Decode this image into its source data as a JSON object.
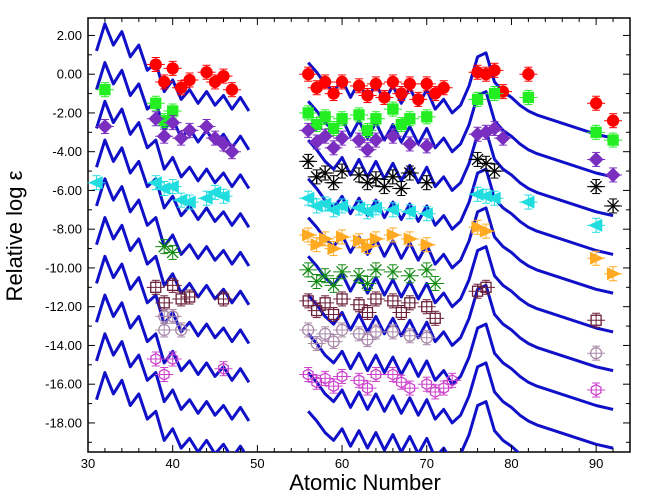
{
  "chart_data": {
    "type": "scatter",
    "title": "",
    "xlabel": "Atomic Number",
    "ylabel": "Relative log ε",
    "xlim": [
      30,
      94
    ],
    "ylim": [
      -19.5,
      2.9
    ],
    "x_ticks": [
      30,
      40,
      50,
      60,
      70,
      80,
      90
    ],
    "x_tick_labels": [
      "30",
      "40",
      "50",
      "60",
      "70",
      "80",
      "90"
    ],
    "y_ticks": [
      2,
      0,
      -2,
      -4,
      -6,
      -8,
      -10,
      -12,
      -14,
      -16,
      -18
    ],
    "y_tick_labels": [
      "2.00",
      "0.00",
      "-2.00",
      "-4.00",
      "-6.00",
      "-8.00",
      "-10.00",
      "-12.00",
      "-14.00",
      "-16.00",
      "-18.00"
    ],
    "grid": false,
    "model_line_color": "#1010c8",
    "model_pattern": {
      "segment1_x": [
        31,
        32,
        33,
        34,
        35,
        36,
        37,
        38,
        39,
        40,
        41,
        42,
        43,
        44,
        45,
        46,
        47,
        48,
        49
      ],
      "segment1_y": [
        1.2,
        2.6,
        1.5,
        2.2,
        0.9,
        1.5,
        0.2,
        0.6,
        -0.9,
        -0.3,
        -1.3,
        -0.8,
        -1.5,
        -0.9,
        -1.6,
        -1.1,
        -1.8,
        -1.2,
        -1.9
      ],
      "segment2_x": [
        56,
        57,
        58,
        59,
        60,
        61,
        62,
        63,
        64,
        65,
        66,
        67,
        68,
        69,
        70,
        71,
        72,
        73,
        74,
        75,
        76,
        77,
        78,
        79,
        80,
        81,
        82,
        83,
        90,
        92
      ],
      "segment2_y": [
        0.6,
        0.1,
        -0.5,
        -0.9,
        -0.3,
        -1.2,
        -0.4,
        -1.3,
        -0.5,
        -1.4,
        -0.6,
        -1.5,
        -0.7,
        -1.6,
        -0.8,
        -1.8,
        -1.3,
        -2.0,
        -1.6,
        -0.6,
        0.9,
        1.1,
        -0.4,
        -0.9,
        -1.2,
        -1.6,
        -1.9,
        -2.1,
        -3.1,
        -3.3
      ]
    },
    "series": [
      {
        "offset": 0,
        "marker": "circle",
        "color": "#ff0000",
        "filled": true,
        "points": [
          [
            38,
            0.5
          ],
          [
            39,
            -0.4
          ],
          [
            40,
            0.3
          ],
          [
            41,
            -0.7
          ],
          [
            42,
            -0.3
          ],
          [
            44,
            0.1
          ],
          [
            45,
            -0.4
          ],
          [
            46,
            -0.1
          ],
          [
            47,
            -0.8
          ],
          [
            56,
            0.0
          ],
          [
            57,
            -0.7
          ],
          [
            58,
            -0.4
          ],
          [
            59,
            -1.0
          ],
          [
            60,
            -0.4
          ],
          [
            62,
            -0.6
          ],
          [
            63,
            -1.1
          ],
          [
            64,
            -0.5
          ],
          [
            65,
            -1.2
          ],
          [
            66,
            -0.4
          ],
          [
            67,
            -1.0
          ],
          [
            68,
            -0.5
          ],
          [
            69,
            -1.3
          ],
          [
            70,
            -0.5
          ],
          [
            71,
            -1.0
          ],
          [
            72,
            -0.7
          ],
          [
            76,
            0.1
          ],
          [
            77,
            0.0
          ],
          [
            78,
            0.2
          ],
          [
            79,
            -0.9
          ],
          [
            82,
            0.0
          ],
          [
            90,
            -1.5
          ],
          [
            92,
            -2.4
          ]
        ]
      },
      {
        "offset": -2,
        "marker": "square",
        "color": "#22ee22",
        "filled": true,
        "points": [
          [
            32,
            -0.8
          ],
          [
            38,
            -1.5
          ],
          [
            39,
            -2.4
          ],
          [
            40,
            -1.9
          ],
          [
            56,
            -2.0
          ],
          [
            57,
            -2.6
          ],
          [
            58,
            -2.2
          ],
          [
            59,
            -2.8
          ],
          [
            60,
            -2.3
          ],
          [
            62,
            -2.1
          ],
          [
            63,
            -2.9
          ],
          [
            64,
            -2.3
          ],
          [
            66,
            -1.8
          ],
          [
            67,
            -2.6
          ],
          [
            68,
            -2.3
          ],
          [
            70,
            -2.2
          ],
          [
            76,
            -1.3
          ],
          [
            78,
            -1.0
          ],
          [
            82,
            -1.2
          ],
          [
            90,
            -3.0
          ],
          [
            92,
            -3.4
          ]
        ]
      },
      {
        "offset": -4,
        "marker": "diamond",
        "color": "#7a2fc0",
        "filled": true,
        "points": [
          [
            32,
            -2.7
          ],
          [
            38,
            -2.3
          ],
          [
            39,
            -3.2
          ],
          [
            40,
            -2.5
          ],
          [
            41,
            -3.3
          ],
          [
            42,
            -2.9
          ],
          [
            44,
            -2.7
          ],
          [
            45,
            -3.3
          ],
          [
            46,
            -3.6
          ],
          [
            47,
            -4.0
          ],
          [
            56,
            -2.9
          ],
          [
            57,
            -3.5
          ],
          [
            58,
            -3.2
          ],
          [
            59,
            -3.8
          ],
          [
            60,
            -3.3
          ],
          [
            62,
            -3.4
          ],
          [
            63,
            -3.9
          ],
          [
            64,
            -3.4
          ],
          [
            66,
            -3.2
          ],
          [
            68,
            -3.6
          ],
          [
            70,
            -3.7
          ],
          [
            76,
            -3.1
          ],
          [
            77,
            -3.0
          ],
          [
            78,
            -2.8
          ],
          [
            79,
            -3.3
          ],
          [
            90,
            -4.4
          ],
          [
            92,
            -5.2
          ]
        ]
      },
      {
        "offset": -6,
        "marker": "asterisk",
        "color": "#000000",
        "filled": false,
        "points": [
          [
            56,
            -4.5
          ],
          [
            57,
            -5.3
          ],
          [
            58,
            -5.1
          ],
          [
            59,
            -5.6
          ],
          [
            60,
            -5.0
          ],
          [
            62,
            -5.2
          ],
          [
            63,
            -5.6
          ],
          [
            64,
            -5.4
          ],
          [
            65,
            -5.8
          ],
          [
            66,
            -5.3
          ],
          [
            67,
            -5.9
          ],
          [
            68,
            -5.1
          ],
          [
            70,
            -5.6
          ],
          [
            76,
            -4.4
          ],
          [
            77,
            -4.6
          ],
          [
            78,
            -5.0
          ],
          [
            90,
            -5.8
          ],
          [
            92,
            -6.8
          ]
        ]
      },
      {
        "offset": -8,
        "marker": "left-triangle",
        "color": "#22dde0",
        "filled": true,
        "points": [
          [
            31,
            -5.6
          ],
          [
            38,
            -5.6
          ],
          [
            39,
            -5.9
          ],
          [
            40,
            -5.8
          ],
          [
            41,
            -6.5
          ],
          [
            42,
            -6.6
          ],
          [
            44,
            -6.4
          ],
          [
            45,
            -6.1
          ],
          [
            46,
            -6.3
          ],
          [
            56,
            -6.4
          ],
          [
            57,
            -6.8
          ],
          [
            58,
            -6.7
          ],
          [
            59,
            -7.0
          ],
          [
            60,
            -6.8
          ],
          [
            62,
            -6.9
          ],
          [
            63,
            -7.1
          ],
          [
            64,
            -6.9
          ],
          [
            66,
            -7.0
          ],
          [
            68,
            -7.1
          ],
          [
            70,
            -7.2
          ],
          [
            76,
            -6.2
          ],
          [
            77,
            -6.3
          ],
          [
            78,
            -6.4
          ],
          [
            82,
            -6.6
          ],
          [
            90,
            -7.8
          ]
        ]
      },
      {
        "offset": -10,
        "marker": "right-triangle",
        "color": "#ffaa22",
        "filled": true,
        "points": [
          [
            56,
            -8.3
          ],
          [
            57,
            -8.8
          ],
          [
            58,
            -8.5
          ],
          [
            59,
            -9.0
          ],
          [
            60,
            -8.4
          ],
          [
            62,
            -8.6
          ],
          [
            63,
            -8.9
          ],
          [
            64,
            -8.5
          ],
          [
            66,
            -8.3
          ],
          [
            68,
            -8.5
          ],
          [
            70,
            -8.8
          ],
          [
            76,
            -7.9
          ],
          [
            77,
            -8.1
          ],
          [
            90,
            -9.5
          ],
          [
            92,
            -10.3
          ]
        ]
      },
      {
        "offset": -12,
        "marker": "x-cross",
        "color": "#108a10",
        "filled": false,
        "points": [
          [
            39,
            -8.9
          ],
          [
            40,
            -9.2
          ],
          [
            56,
            -10.1
          ],
          [
            57,
            -10.7
          ],
          [
            58,
            -10.4
          ],
          [
            59,
            -10.9
          ],
          [
            60,
            -10.2
          ],
          [
            62,
            -10.4
          ],
          [
            63,
            -10.8
          ],
          [
            64,
            -10.1
          ],
          [
            66,
            -10.2
          ],
          [
            68,
            -10.4
          ],
          [
            70,
            -10.1
          ],
          [
            71,
            -10.8
          ]
        ]
      },
      {
        "offset": -14,
        "marker": "square",
        "color": "#6a1f3a",
        "filled": false,
        "points": [
          [
            38,
            -11.0
          ],
          [
            39,
            -11.8
          ],
          [
            40,
            -10.9
          ],
          [
            41,
            -11.6
          ],
          [
            42,
            -11.5
          ],
          [
            46,
            -11.6
          ],
          [
            56,
            -11.7
          ],
          [
            57,
            -12.2
          ],
          [
            58,
            -11.8
          ],
          [
            59,
            -12.4
          ],
          [
            60,
            -11.6
          ],
          [
            62,
            -11.9
          ],
          [
            63,
            -12.3
          ],
          [
            64,
            -11.6
          ],
          [
            66,
            -11.7
          ],
          [
            67,
            -12.3
          ],
          [
            68,
            -11.8
          ],
          [
            70,
            -12.0
          ],
          [
            71,
            -12.6
          ],
          [
            76,
            -11.2
          ],
          [
            77,
            -11.0
          ],
          [
            90,
            -12.7
          ]
        ]
      },
      {
        "offset": -16,
        "marker": "circle",
        "color": "#aa8aaa",
        "filled": false,
        "points": [
          [
            39,
            -12.5
          ],
          [
            40,
            -12.5
          ],
          [
            41,
            -13.2
          ],
          [
            39,
            -13.2
          ],
          [
            56,
            -13.2
          ],
          [
            57,
            -13.9
          ],
          [
            58,
            -13.4
          ],
          [
            59,
            -13.8
          ],
          [
            60,
            -13.2
          ],
          [
            62,
            -13.4
          ],
          [
            63,
            -13.7
          ],
          [
            64,
            -13.3
          ],
          [
            66,
            -13.3
          ],
          [
            68,
            -13.5
          ],
          [
            70,
            -13.6
          ],
          [
            90,
            -14.4
          ]
        ]
      },
      {
        "offset": -18,
        "marker": "hexagon",
        "color": "#cc44cc",
        "filled": false,
        "points": [
          [
            38,
            -14.7
          ],
          [
            39,
            -15.5
          ],
          [
            40,
            -14.7
          ],
          [
            46,
            -15.2
          ],
          [
            56,
            -15.5
          ],
          [
            57,
            -15.9
          ],
          [
            58,
            -15.7
          ],
          [
            59,
            -16.1
          ],
          [
            60,
            -15.6
          ],
          [
            62,
            -15.8
          ],
          [
            63,
            -16.2
          ],
          [
            64,
            -15.5
          ],
          [
            66,
            -15.5
          ],
          [
            67,
            -15.9
          ],
          [
            68,
            -16.2
          ],
          [
            70,
            -16.0
          ],
          [
            71,
            -16.4
          ],
          [
            72,
            -16.2
          ],
          [
            73,
            -15.8
          ],
          [
            90,
            -16.3
          ]
        ]
      }
    ]
  }
}
